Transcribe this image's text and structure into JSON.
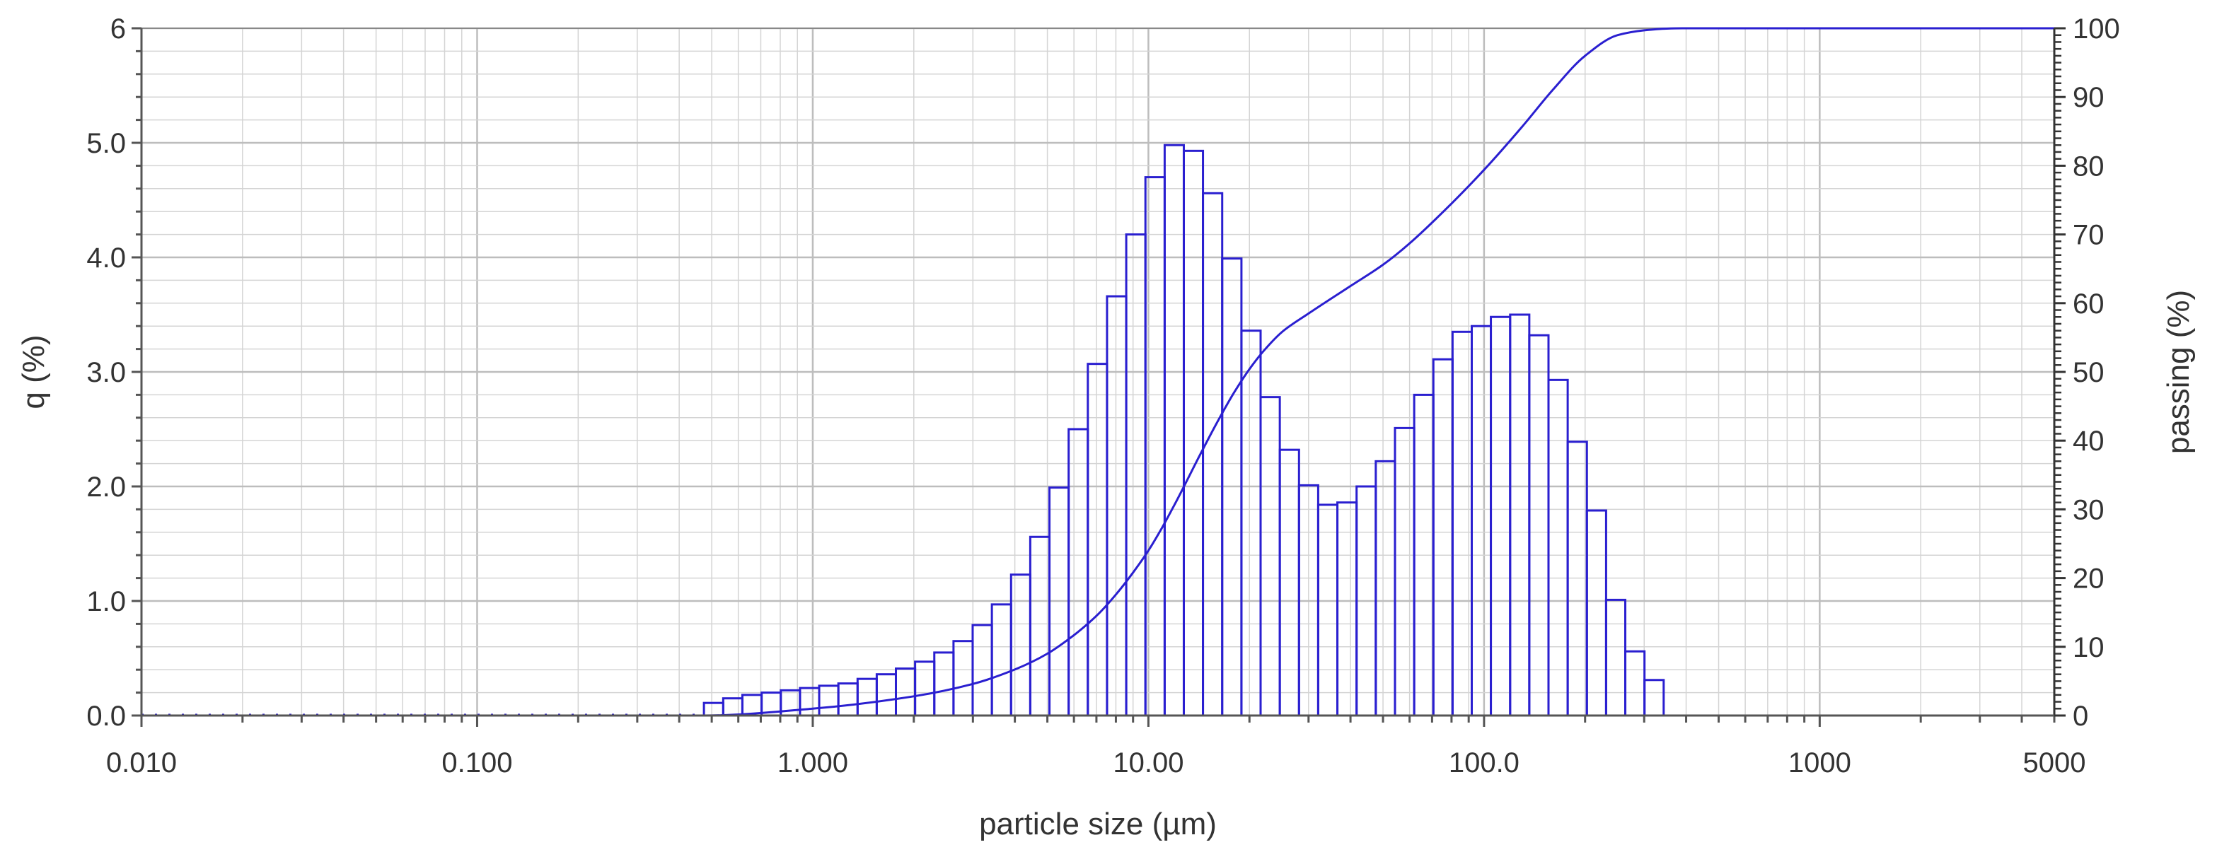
{
  "chart_data": {
    "type": "bar",
    "xlabel": "particle size (µm)",
    "ylabel_left": "q (%)",
    "ylabel_right": "passing (%)",
    "x_scale": "log",
    "xlim": [
      0.01,
      5000
    ],
    "ylim_left": [
      0,
      6
    ],
    "ylim_right": [
      0,
      100
    ],
    "grid": true,
    "x_tick_values": [
      0.01,
      0.1,
      1,
      10,
      100,
      1000,
      5000
    ],
    "x_tick_labels": [
      "0.010",
      "0.100",
      "1.000",
      "10.00",
      "100.0",
      "1000",
      "5000"
    ],
    "y_left_tick_values": [
      0,
      1,
      2,
      3,
      4,
      5,
      6
    ],
    "y_left_tick_labels": [
      "0.0",
      "1.0",
      "2.0",
      "3.0",
      "4.0",
      "5.0",
      "6"
    ],
    "y_right_tick_values": [
      0,
      10,
      20,
      30,
      40,
      50,
      60,
      70,
      80,
      90,
      100
    ],
    "y_right_tick_labels": [
      "0",
      "10",
      "20",
      "30",
      "40",
      "50",
      "60",
      "70",
      "80",
      "90",
      "100"
    ],
    "colors": {
      "series": "#2a1fd0",
      "grid": "#d4d4d4",
      "grid_major": "#bdbdbd",
      "axis": "#555555"
    },
    "series": [
      {
        "type": "histogram",
        "axis": "left",
        "bin_edges": [
          0.474,
          0.541,
          0.617,
          0.704,
          0.803,
          0.916,
          1.045,
          1.192,
          1.36,
          1.551,
          1.769,
          2.018,
          2.302,
          2.626,
          2.995,
          3.417,
          3.898,
          4.446,
          5.072,
          5.786,
          6.6,
          7.529,
          8.589,
          9.798,
          11.18,
          12.75,
          14.54,
          16.59,
          18.93,
          21.59,
          24.63,
          28.1,
          32.05,
          36.56,
          41.71,
          47.58,
          54.28,
          61.92,
          70.63,
          80.57,
          91.91,
          104.8,
          119.6,
          136.4,
          155.6,
          177.5,
          202.5,
          231.0,
          263.5,
          300.6,
          342.9,
          391.1
        ],
        "values": [
          0.11,
          0.15,
          0.18,
          0.2,
          0.22,
          0.24,
          0.26,
          0.28,
          0.32,
          0.36,
          0.41,
          0.47,
          0.55,
          0.65,
          0.79,
          0.97,
          1.23,
          1.56,
          1.99,
          2.5,
          3.07,
          3.66,
          4.2,
          4.7,
          4.98,
          4.93,
          4.56,
          3.99,
          3.36,
          2.78,
          2.32,
          2.01,
          1.84,
          1.86,
          2.0,
          2.22,
          2.51,
          2.8,
          3.11,
          3.35,
          3.4,
          3.48,
          3.5,
          3.32,
          2.93,
          2.39,
          1.79,
          1.01,
          0.56,
          0.31,
          0.0
        ]
      },
      {
        "type": "line",
        "axis": "right",
        "x": [
          0.01,
          0.474,
          1.0,
          2.0,
          3.0,
          4.0,
          5.0,
          6.0,
          7.0,
          8.0,
          9.0,
          10.0,
          11.0,
          12.0,
          14.0,
          16.0,
          18.0,
          20.0,
          22.0,
          25.0,
          30.0,
          40.0,
          50.0,
          60.0,
          80.0,
          100.0,
          130.0,
          160.0,
          200.0,
          250.0,
          300.0,
          350.0,
          391.1,
          1000,
          5000
        ],
        "y": [
          0,
          0,
          1,
          2.8,
          4.6,
          6.7,
          9,
          11.7,
          14.5,
          17.6,
          20.8,
          24,
          27.4,
          30.8,
          37.2,
          42.6,
          47,
          50.4,
          53,
          55.8,
          58.5,
          62.5,
          65.6,
          68.7,
          74.5,
          79.4,
          85.7,
          91,
          96,
          99,
          99.7,
          99.95,
          100,
          100,
          100
        ]
      }
    ]
  }
}
